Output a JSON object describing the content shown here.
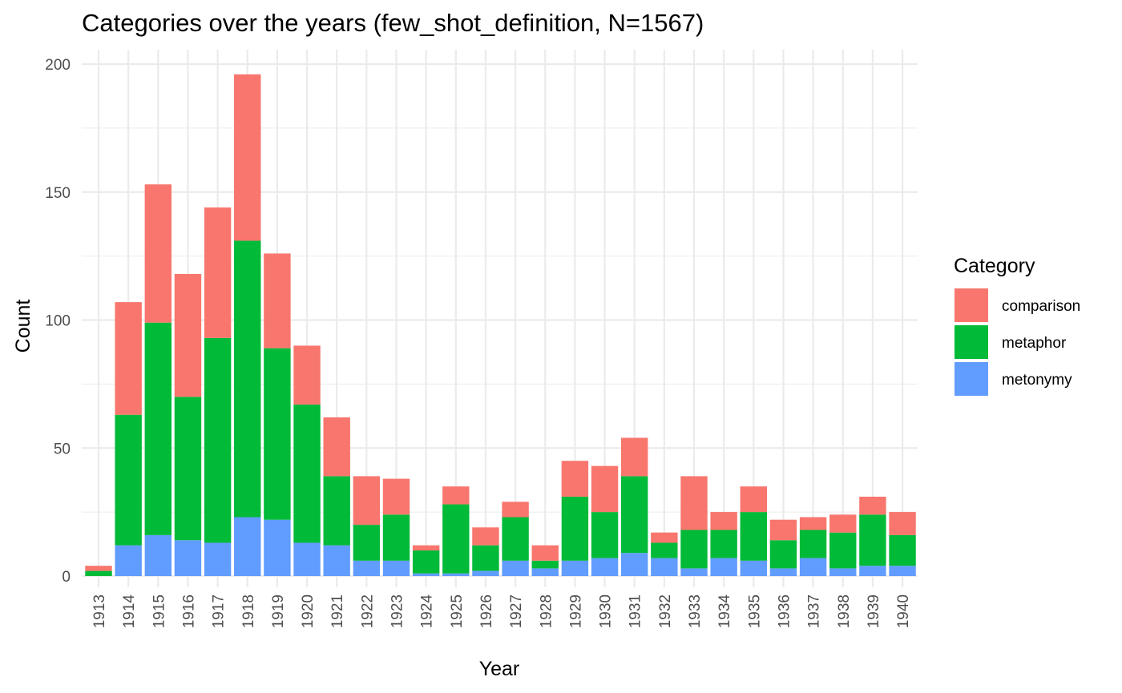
{
  "chart_data": {
    "type": "bar",
    "stacked": true,
    "title": "Categories over the years (few_shot_definition, N=1567)",
    "xlabel": "Year",
    "ylabel": "Count",
    "ylim": [
      0,
      200
    ],
    "yticks": [
      0,
      50,
      100,
      150,
      200
    ],
    "grid": true,
    "legend": {
      "title": "Category",
      "position": "right"
    },
    "categories": [
      "1913",
      "1914",
      "1915",
      "1916",
      "1917",
      "1918",
      "1919",
      "1920",
      "1921",
      "1922",
      "1923",
      "1924",
      "1925",
      "1926",
      "1927",
      "1928",
      "1929",
      "1930",
      "1931",
      "1932",
      "1933",
      "1934",
      "1935",
      "1936",
      "1937",
      "1938",
      "1939",
      "1940"
    ],
    "series": [
      {
        "name": "metonymy",
        "color": "#619cff",
        "values": [
          0,
          12,
          16,
          14,
          13,
          23,
          22,
          13,
          12,
          6,
          6,
          1,
          1,
          2,
          6,
          3,
          6,
          7,
          9,
          7,
          3,
          7,
          6,
          3,
          7,
          3,
          4,
          4
        ]
      },
      {
        "name": "metaphor",
        "color": "#00ba38",
        "values": [
          2,
          51,
          83,
          56,
          80,
          108,
          67,
          54,
          27,
          14,
          18,
          9,
          27,
          10,
          17,
          3,
          25,
          18,
          30,
          6,
          15,
          11,
          19,
          11,
          11,
          14,
          20,
          12
        ]
      },
      {
        "name": "comparison",
        "color": "#f8766d",
        "values": [
          2,
          44,
          54,
          48,
          51,
          65,
          37,
          23,
          23,
          19,
          14,
          2,
          7,
          7,
          6,
          6,
          14,
          18,
          15,
          4,
          21,
          7,
          10,
          8,
          5,
          7,
          7,
          9
        ]
      }
    ],
    "legend_order": [
      "comparison",
      "metaphor",
      "metonymy"
    ]
  }
}
